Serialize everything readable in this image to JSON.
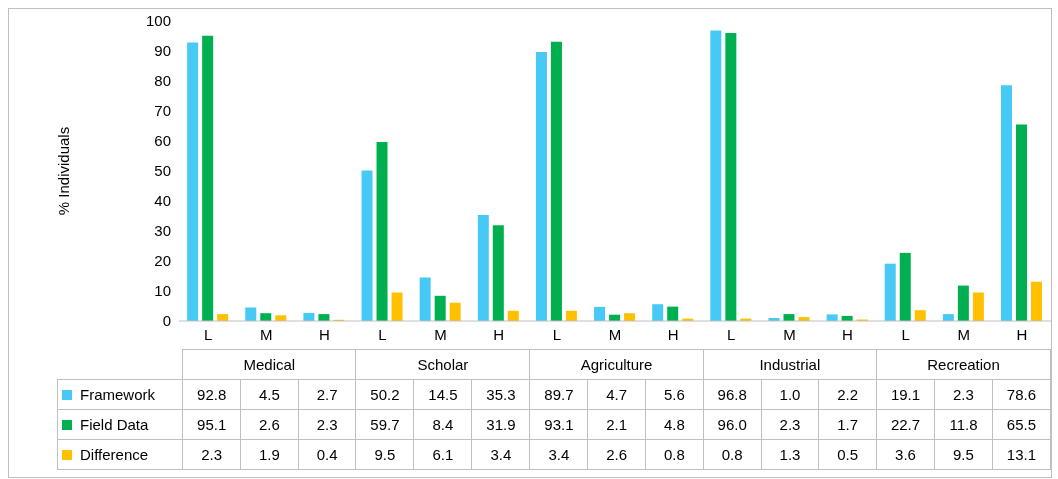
{
  "chart_data": {
    "type": "bar",
    "ylabel": "% Individuals",
    "categories": [
      "L",
      "M",
      "H",
      "L",
      "M",
      "H",
      "L",
      "M",
      "H",
      "L",
      "M",
      "H",
      "L",
      "M",
      "H"
    ],
    "annotations": [
      "Medical",
      "Scholar",
      "Agriculture",
      "Industrial",
      "Recreation"
    ],
    "series": [
      {
        "name": "Framework",
        "color": "#47c9f5",
        "values": [
          92.8,
          4.5,
          2.7,
          50.2,
          14.5,
          35.3,
          89.7,
          4.7,
          5.6,
          96.8,
          1.0,
          2.2,
          19.1,
          2.3,
          78.6
        ],
        "value_labels": [
          "92.8",
          "4.5",
          "2.7",
          "50.2",
          "14.5",
          "35.3",
          "89.7",
          "4.7",
          "5.6",
          "96.8",
          "1.0",
          "2.2",
          "19.1",
          "2.3",
          "78.6"
        ]
      },
      {
        "name": "Field Data",
        "color": "#00b050",
        "values": [
          95.1,
          2.6,
          2.3,
          59.7,
          8.4,
          31.9,
          93.1,
          2.1,
          4.8,
          96.0,
          2.3,
          1.7,
          22.7,
          11.8,
          65.5
        ],
        "value_labels": [
          "95.1",
          "2.6",
          "2.3",
          "59.7",
          "8.4",
          "31.9",
          "93.1",
          "2.1",
          "4.8",
          "96.0",
          "2.3",
          "1.7",
          "22.7",
          "11.8",
          "65.5"
        ]
      },
      {
        "name": "Difference",
        "color": "#ffc000",
        "values": [
          2.3,
          1.9,
          0.4,
          9.5,
          6.1,
          3.4,
          3.4,
          2.6,
          0.8,
          0.8,
          1.3,
          0.5,
          3.6,
          9.5,
          13.1
        ],
        "value_labels": [
          "2.3",
          "1.9",
          "0.4",
          "9.5",
          "6.1",
          "3.4",
          "3.4",
          "2.6",
          "0.8",
          "0.8",
          "1.3",
          "0.5",
          "3.6",
          "9.5",
          "13.1"
        ]
      }
    ],
    "ylim": [
      0,
      100
    ],
    "yticks": [
      0,
      10,
      20,
      30,
      40,
      50,
      60,
      70,
      80,
      90,
      100
    ],
    "legend": "bottom left"
  }
}
